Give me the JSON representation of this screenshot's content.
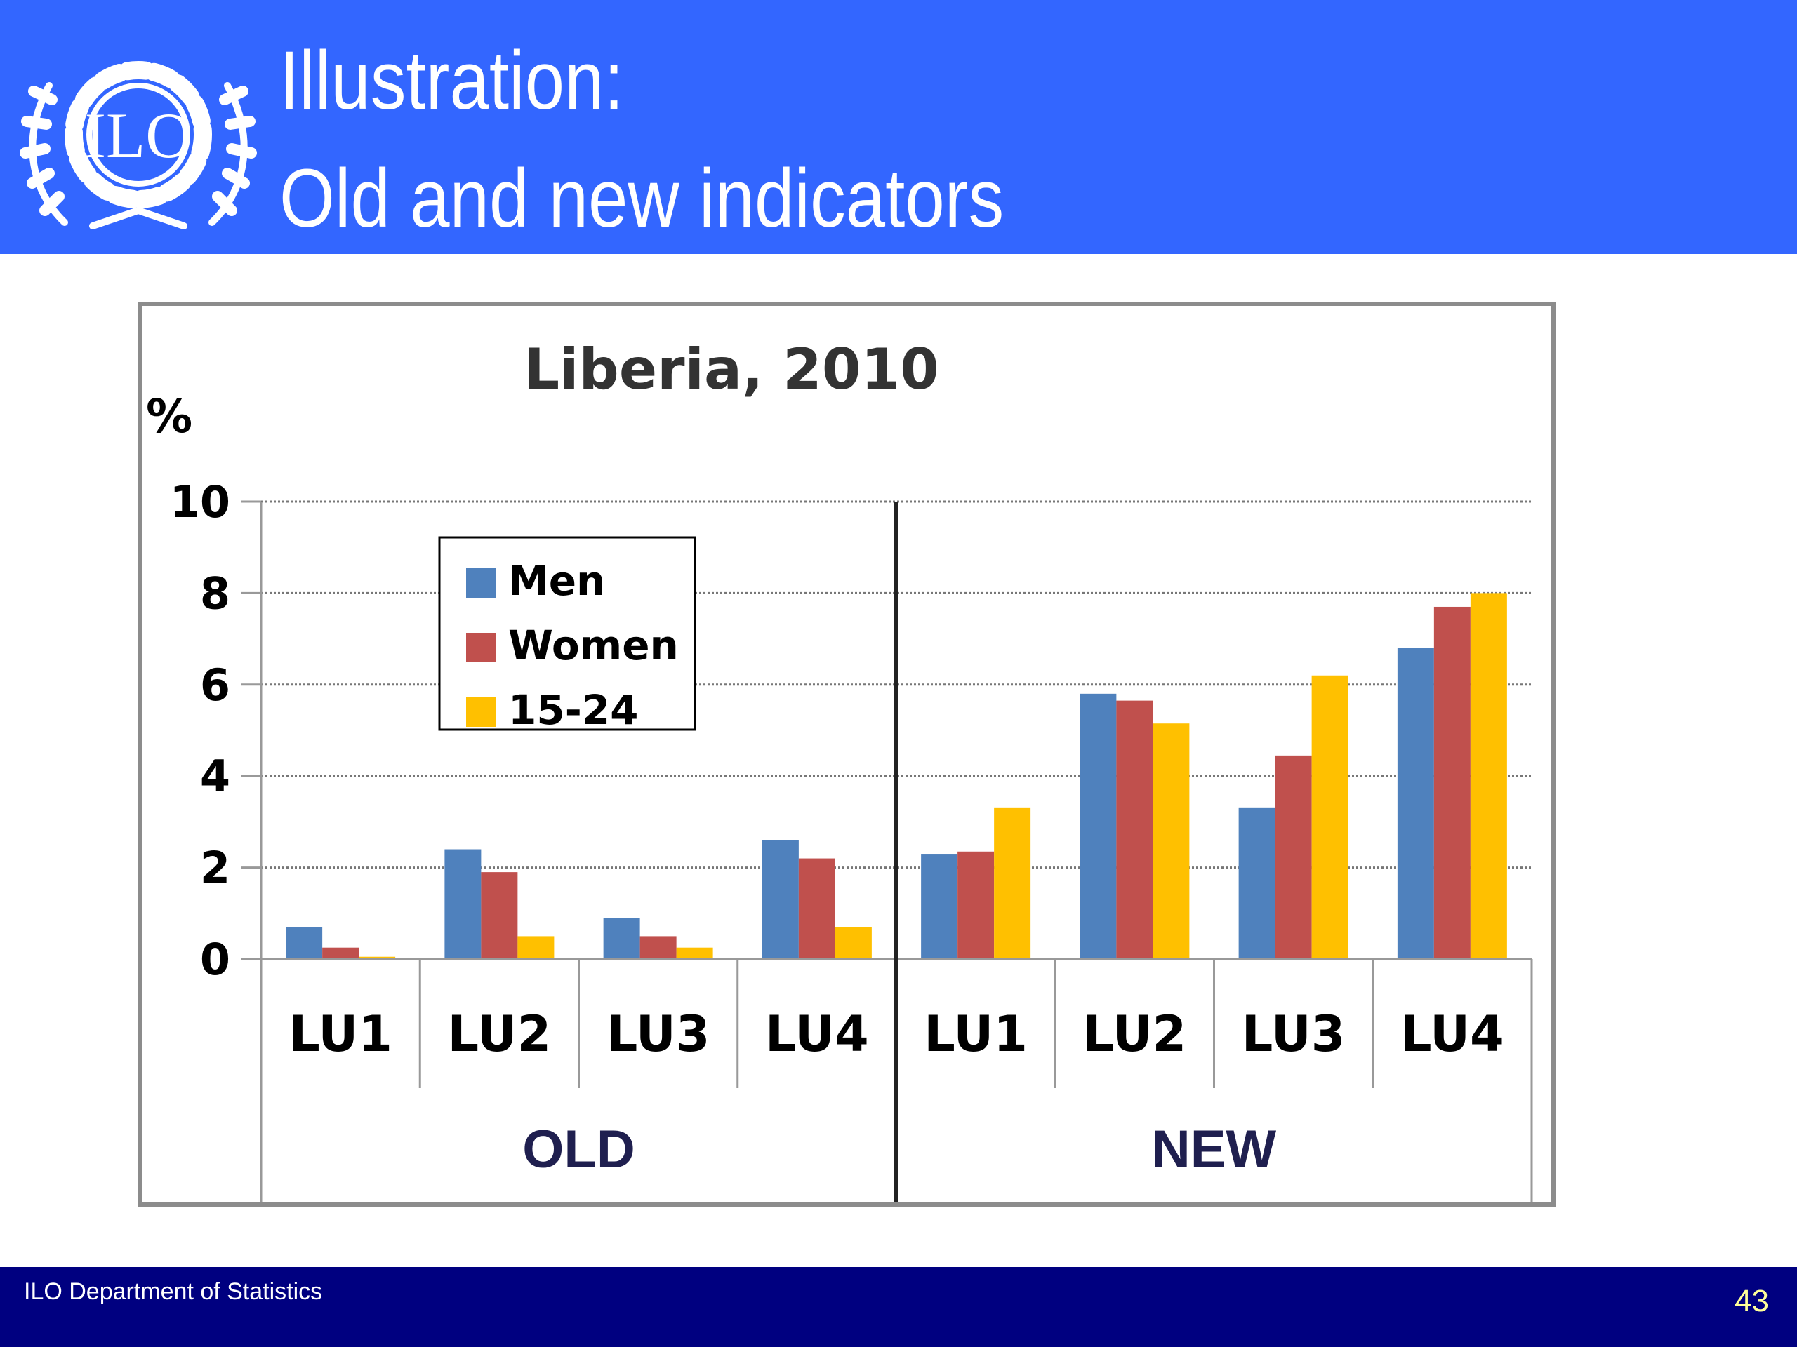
{
  "header": {
    "title_line1": "Illustration:",
    "title_line2": "Old and new indicators",
    "logo_text": "ILO",
    "background_color": "#3366ff"
  },
  "footer": {
    "text": "ILO Department of Statistics",
    "slide_number": "43",
    "background_color": "#000080"
  },
  "chart_data": {
    "type": "bar",
    "title": "Liberia, 2010",
    "ylabel": "%",
    "xlabel": "",
    "ylim": [
      0,
      10
    ],
    "yticks": [
      0,
      2,
      4,
      6,
      8,
      10
    ],
    "grid": true,
    "legend_position": "top-left",
    "groups": [
      {
        "label": "OLD",
        "categories": [
          "LU1",
          "LU2",
          "LU3",
          "LU4"
        ]
      },
      {
        "label": "NEW",
        "categories": [
          "LU1",
          "LU2",
          "LU3",
          "LU4"
        ]
      }
    ],
    "series": [
      {
        "name": "Men",
        "color": "#4f81bd",
        "values": [
          0.7,
          2.4,
          0.9,
          2.6,
          2.3,
          5.8,
          3.3,
          6.8
        ]
      },
      {
        "name": "Women",
        "color": "#c0504d",
        "values": [
          0.25,
          1.9,
          0.5,
          2.2,
          2.35,
          5.65,
          4.45,
          7.7
        ]
      },
      {
        "name": "15-24",
        "color": "#ffc000",
        "values": [
          0.05,
          0.5,
          0.25,
          0.7,
          3.3,
          5.15,
          6.2,
          8.0
        ]
      }
    ]
  }
}
